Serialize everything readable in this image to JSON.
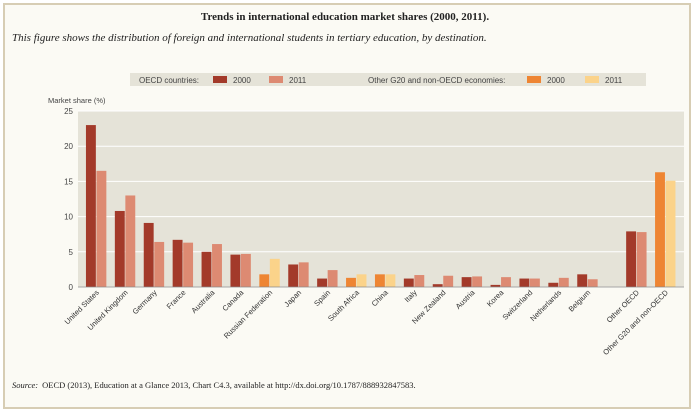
{
  "header": {
    "title": "Trends in international education market shares (2000, 2011).",
    "subtitle": "This figure shows the distribution of foreign and international students in tertiary education, by destination."
  },
  "source": {
    "label": "Source:",
    "text": "OECD (2013), Education at a Glance 2013, Chart C4.3, available at http://dx.doi.org/10.1787/888932847583."
  },
  "colors": {
    "oecd_2000": "#a33a2a",
    "oecd_2011": "#dd8a72",
    "other_2000": "#ee8533",
    "other_2011": "#fbd38a",
    "grid": "#ffffff",
    "plot_bg": "#e5e3d8"
  },
  "chart_data": {
    "type": "bar",
    "title": "Trends in international education market shares (2000, 2011).",
    "ylabel": "Market share (%)",
    "xlabel": "",
    "ylim": [
      0,
      25
    ],
    "yticks": [
      0,
      5,
      10,
      15,
      20,
      25
    ],
    "grid": true,
    "legend": {
      "placement": "top",
      "groups": [
        {
          "label": "OECD countries:",
          "items": [
            "2000",
            "2011"
          ]
        },
        {
          "label": "Other G20 and non-OECD economies:",
          "items": [
            "2000",
            "2011"
          ]
        }
      ]
    },
    "categories": [
      "United States",
      "United Kingdom",
      "Germany",
      "France",
      "Australia",
      "Canada",
      "Russian Federation",
      "Japan",
      "Spain",
      "South Africa",
      "China",
      "Italy",
      "New Zealand",
      "Austria",
      "Korea",
      "Switzerland",
      "Netherlands",
      "Belgium",
      "Other OECD",
      "Other G20 and non-OECD"
    ],
    "groups": [
      "oecd",
      "oecd",
      "oecd",
      "oecd",
      "oecd",
      "oecd",
      "other",
      "oecd",
      "oecd",
      "other",
      "other",
      "oecd",
      "oecd",
      "oecd",
      "oecd",
      "oecd",
      "oecd",
      "oecd",
      "oecd",
      "other"
    ],
    "series": [
      {
        "name": "2000",
        "values": [
          23.0,
          10.8,
          9.1,
          6.7,
          5.0,
          4.6,
          1.8,
          3.2,
          1.2,
          1.3,
          1.8,
          1.2,
          0.4,
          1.4,
          0.3,
          1.2,
          0.6,
          1.8,
          7.9,
          16.3
        ]
      },
      {
        "name": "2011",
        "values": [
          16.5,
          13.0,
          6.4,
          6.3,
          6.1,
          4.7,
          4.0,
          3.5,
          2.4,
          1.8,
          1.8,
          1.7,
          1.6,
          1.5,
          1.4,
          1.2,
          1.3,
          1.1,
          7.8,
          15.1
        ]
      }
    ]
  }
}
